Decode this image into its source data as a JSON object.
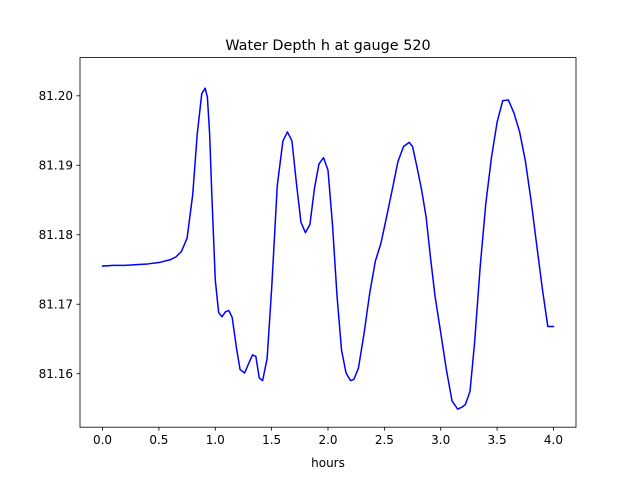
{
  "chart_data": {
    "type": "line",
    "title": "Water Depth h at gauge 520",
    "xlabel": "hours",
    "ylabel": "",
    "xlim": [
      -0.2,
      4.2
    ],
    "ylim": [
      81.1523,
      81.2055
    ],
    "xticks": [
      0.0,
      0.5,
      1.0,
      1.5,
      2.0,
      2.5,
      3.0,
      3.5,
      4.0
    ],
    "xtick_labels": [
      "0.0",
      "0.5",
      "1.0",
      "1.5",
      "2.0",
      "2.5",
      "3.0",
      "3.5",
      "4.0"
    ],
    "yticks": [
      81.16,
      81.17,
      81.18,
      81.19,
      81.2
    ],
    "ytick_labels": [
      "81.16",
      "81.17",
      "81.18",
      "81.19",
      "81.20"
    ],
    "grid": false,
    "series": [
      {
        "color": "#0000ff",
        "x": [
          0.0,
          0.1,
          0.2,
          0.3,
          0.4,
          0.5,
          0.6,
          0.65,
          0.7,
          0.75,
          0.8,
          0.84,
          0.88,
          0.91,
          0.93,
          0.95,
          0.97,
          1.0,
          1.03,
          1.06,
          1.09,
          1.12,
          1.15,
          1.19,
          1.22,
          1.26,
          1.3,
          1.33,
          1.36,
          1.39,
          1.42,
          1.46,
          1.5,
          1.55,
          1.6,
          1.64,
          1.68,
          1.72,
          1.76,
          1.8,
          1.84,
          1.88,
          1.92,
          1.96,
          2.0,
          2.04,
          2.08,
          2.12,
          2.16,
          2.2,
          2.23,
          2.27,
          2.32,
          2.37,
          2.42,
          2.47,
          2.52,
          2.57,
          2.62,
          2.67,
          2.72,
          2.75,
          2.79,
          2.83,
          2.87,
          2.91,
          2.95,
          3.0,
          3.05,
          3.1,
          3.15,
          3.19,
          3.22,
          3.26,
          3.3,
          3.35,
          3.4,
          3.45,
          3.5,
          3.55,
          3.6,
          3.65,
          3.7,
          3.75,
          3.8,
          3.85,
          3.9,
          3.95,
          4.0
        ],
        "y": [
          81.1755,
          81.1756,
          81.1756,
          81.1757,
          81.1758,
          81.176,
          81.1764,
          81.1768,
          81.1776,
          81.1795,
          81.1858,
          81.1945,
          81.2003,
          81.2011,
          81.1998,
          81.1945,
          81.1855,
          81.1735,
          81.1688,
          81.1682,
          81.1689,
          81.1691,
          81.1681,
          81.1635,
          81.1606,
          81.1601,
          81.1616,
          81.1627,
          81.1625,
          81.1594,
          81.159,
          81.1622,
          81.1722,
          81.1871,
          81.1935,
          81.1948,
          81.1935,
          81.1874,
          81.1818,
          81.1803,
          81.1815,
          81.1867,
          81.1902,
          81.1911,
          81.1893,
          81.1814,
          81.1712,
          81.1634,
          81.1601,
          81.159,
          81.1592,
          81.1608,
          81.1658,
          81.1716,
          81.1762,
          81.1788,
          81.1826,
          81.1865,
          81.1905,
          81.1927,
          81.1933,
          81.1927,
          81.1897,
          81.1865,
          81.1826,
          81.1766,
          81.1711,
          81.1659,
          81.1606,
          81.1561,
          81.1549,
          81.1552,
          81.1556,
          81.1575,
          81.1644,
          81.1754,
          81.1845,
          81.1911,
          81.1962,
          81.1993,
          81.1994,
          81.1975,
          81.1948,
          81.1907,
          81.1851,
          81.1787,
          81.1724,
          81.1668,
          81.1668
        ]
      }
    ]
  }
}
